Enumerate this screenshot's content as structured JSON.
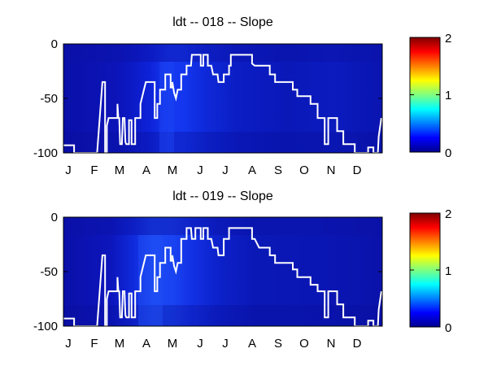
{
  "chart_data": [
    {
      "type": "heatmap",
      "title": "ldt -- 018 -- Slope",
      "xlabel": "",
      "ylabel": "",
      "x_ticks": [
        "J",
        "F",
        "M",
        "A",
        "M",
        "J",
        "J",
        "A",
        "S",
        "O",
        "N",
        "D"
      ],
      "y_ticks": [
        "0",
        "-50",
        "-100"
      ],
      "ylim": [
        -100,
        0
      ],
      "colorbar": {
        "colormap": "jet",
        "range": [
          0,
          2
        ],
        "ticks": [
          "0",
          "1",
          "2"
        ]
      },
      "line_series": {
        "color": "#ffffff",
        "points": [
          [
            1,
            -93
          ],
          [
            13,
            -93
          ],
          [
            13,
            -100
          ],
          [
            39,
            -100
          ],
          [
            42,
            -68
          ],
          [
            45,
            -35
          ],
          [
            48,
            -35
          ],
          [
            48,
            -100
          ],
          [
            50,
            -100
          ],
          [
            50,
            -75
          ],
          [
            52,
            -68
          ],
          [
            62,
            -68
          ],
          [
            62,
            -55
          ],
          [
            63,
            -68
          ],
          [
            64,
            -68
          ],
          [
            65,
            -92
          ],
          [
            67,
            -92
          ],
          [
            68,
            -68
          ],
          [
            70,
            -68
          ],
          [
            71,
            -90
          ],
          [
            72,
            -92
          ],
          [
            75,
            -92
          ],
          [
            75,
            -70
          ],
          [
            78,
            -70
          ],
          [
            78,
            -92
          ],
          [
            82,
            -92
          ],
          [
            82,
            -68
          ],
          [
            88,
            -68
          ],
          [
            88,
            -55
          ],
          [
            91,
            -45
          ],
          [
            94,
            -35
          ],
          [
            104,
            -35
          ],
          [
            104,
            -68
          ],
          [
            107,
            -68
          ],
          [
            107,
            -55
          ],
          [
            110,
            -55
          ],
          [
            110,
            -42
          ],
          [
            116,
            -42
          ],
          [
            116,
            -28
          ],
          [
            122,
            -28
          ],
          [
            122,
            -40
          ],
          [
            124,
            -40
          ],
          [
            124,
            -35
          ],
          [
            126,
            -45
          ],
          [
            128,
            -50
          ],
          [
            130,
            -42
          ],
          [
            134,
            -42
          ],
          [
            134,
            -28
          ],
          [
            140,
            -28
          ],
          [
            140,
            -20
          ],
          [
            145,
            -20
          ],
          [
            146,
            -10
          ],
          [
            156,
            -10
          ],
          [
            156,
            -20
          ],
          [
            159,
            -20
          ],
          [
            159,
            -10
          ],
          [
            164,
            -10
          ],
          [
            164,
            -20
          ],
          [
            168,
            -20
          ],
          [
            170,
            -28
          ],
          [
            175,
            -28
          ],
          [
            176,
            -35
          ],
          [
            182,
            -35
          ],
          [
            182,
            -28
          ],
          [
            188,
            -28
          ],
          [
            188,
            -20
          ],
          [
            190,
            -20
          ],
          [
            190,
            -10
          ],
          [
            214,
            -10
          ],
          [
            214,
            -18
          ],
          [
            217,
            -20
          ],
          [
            234,
            -20
          ],
          [
            234,
            -28
          ],
          [
            240,
            -28
          ],
          [
            240,
            -35
          ],
          [
            260,
            -35
          ],
          [
            260,
            -42
          ],
          [
            265,
            -42
          ],
          [
            265,
            -48
          ],
          [
            280,
            -48
          ],
          [
            280,
            -55
          ],
          [
            288,
            -55
          ],
          [
            288,
            -68
          ],
          [
            296,
            -68
          ],
          [
            296,
            -92
          ],
          [
            300,
            -92
          ],
          [
            300,
            -68
          ],
          [
            310,
            -68
          ],
          [
            310,
            -80
          ],
          [
            317,
            -80
          ],
          [
            317,
            -92
          ],
          [
            330,
            -92
          ],
          [
            330,
            -100
          ],
          [
            345,
            -100
          ],
          [
            345,
            -95
          ],
          [
            351,
            -95
          ],
          [
            351,
            -100
          ],
          [
            356,
            -100
          ],
          [
            357,
            -85
          ],
          [
            360,
            -68
          ]
        ]
      }
    },
    {
      "type": "heatmap",
      "title": "ldt -- 019 -- Slope",
      "xlabel": "",
      "ylabel": "",
      "x_ticks": [
        "J",
        "F",
        "M",
        "A",
        "M",
        "J",
        "J",
        "A",
        "S",
        "O",
        "N",
        "D"
      ],
      "y_ticks": [
        "0",
        "-50",
        "-100"
      ],
      "ylim": [
        -100,
        0
      ],
      "colorbar": {
        "colormap": "jet",
        "range": [
          0,
          2
        ],
        "ticks": [
          "0",
          "1",
          "2"
        ]
      },
      "line_series": {
        "color": "#ffffff",
        "points": [
          [
            1,
            -93
          ],
          [
            13,
            -93
          ],
          [
            13,
            -100
          ],
          [
            39,
            -100
          ],
          [
            42,
            -68
          ],
          [
            45,
            -35
          ],
          [
            48,
            -35
          ],
          [
            48,
            -100
          ],
          [
            50,
            -100
          ],
          [
            50,
            -75
          ],
          [
            52,
            -68
          ],
          [
            62,
            -68
          ],
          [
            62,
            -55
          ],
          [
            63,
            -68
          ],
          [
            64,
            -68
          ],
          [
            65,
            -92
          ],
          [
            67,
            -92
          ],
          [
            68,
            -68
          ],
          [
            70,
            -68
          ],
          [
            71,
            -90
          ],
          [
            72,
            -92
          ],
          [
            75,
            -92
          ],
          [
            75,
            -70
          ],
          [
            78,
            -70
          ],
          [
            78,
            -92
          ],
          [
            82,
            -92
          ],
          [
            82,
            -68
          ],
          [
            88,
            -68
          ],
          [
            88,
            -55
          ],
          [
            91,
            -45
          ],
          [
            94,
            -35
          ],
          [
            104,
            -35
          ],
          [
            104,
            -68
          ],
          [
            107,
            -68
          ],
          [
            107,
            -55
          ],
          [
            110,
            -55
          ],
          [
            110,
            -42
          ],
          [
            116,
            -42
          ],
          [
            116,
            -28
          ],
          [
            122,
            -28
          ],
          [
            122,
            -40
          ],
          [
            124,
            -40
          ],
          [
            124,
            -35
          ],
          [
            126,
            -45
          ],
          [
            128,
            -50
          ],
          [
            130,
            -42
          ],
          [
            134,
            -42
          ],
          [
            134,
            -20
          ],
          [
            140,
            -20
          ],
          [
            140,
            -10
          ],
          [
            145,
            -10
          ],
          [
            146,
            -20
          ],
          [
            150,
            -20
          ],
          [
            150,
            -10
          ],
          [
            156,
            -10
          ],
          [
            156,
            -20
          ],
          [
            159,
            -20
          ],
          [
            159,
            -10
          ],
          [
            164,
            -10
          ],
          [
            164,
            -20
          ],
          [
            168,
            -20
          ],
          [
            170,
            -28
          ],
          [
            175,
            -28
          ],
          [
            176,
            -35
          ],
          [
            182,
            -35
          ],
          [
            182,
            -20
          ],
          [
            188,
            -20
          ],
          [
            188,
            -10
          ],
          [
            214,
            -10
          ],
          [
            214,
            -20
          ],
          [
            217,
            -20
          ],
          [
            222,
            -28
          ],
          [
            234,
            -28
          ],
          [
            234,
            -35
          ],
          [
            240,
            -35
          ],
          [
            240,
            -42
          ],
          [
            260,
            -42
          ],
          [
            260,
            -48
          ],
          [
            265,
            -48
          ],
          [
            265,
            -55
          ],
          [
            280,
            -55
          ],
          [
            280,
            -62
          ],
          [
            288,
            -62
          ],
          [
            288,
            -68
          ],
          [
            296,
            -68
          ],
          [
            296,
            -92
          ],
          [
            300,
            -92
          ],
          [
            300,
            -68
          ],
          [
            310,
            -68
          ],
          [
            310,
            -80
          ],
          [
            317,
            -80
          ],
          [
            317,
            -92
          ],
          [
            330,
            -92
          ],
          [
            330,
            -100
          ],
          [
            345,
            -100
          ],
          [
            345,
            -95
          ],
          [
            351,
            -95
          ],
          [
            351,
            -100
          ],
          [
            356,
            -100
          ],
          [
            357,
            -85
          ],
          [
            360,
            -68
          ]
        ]
      }
    }
  ]
}
